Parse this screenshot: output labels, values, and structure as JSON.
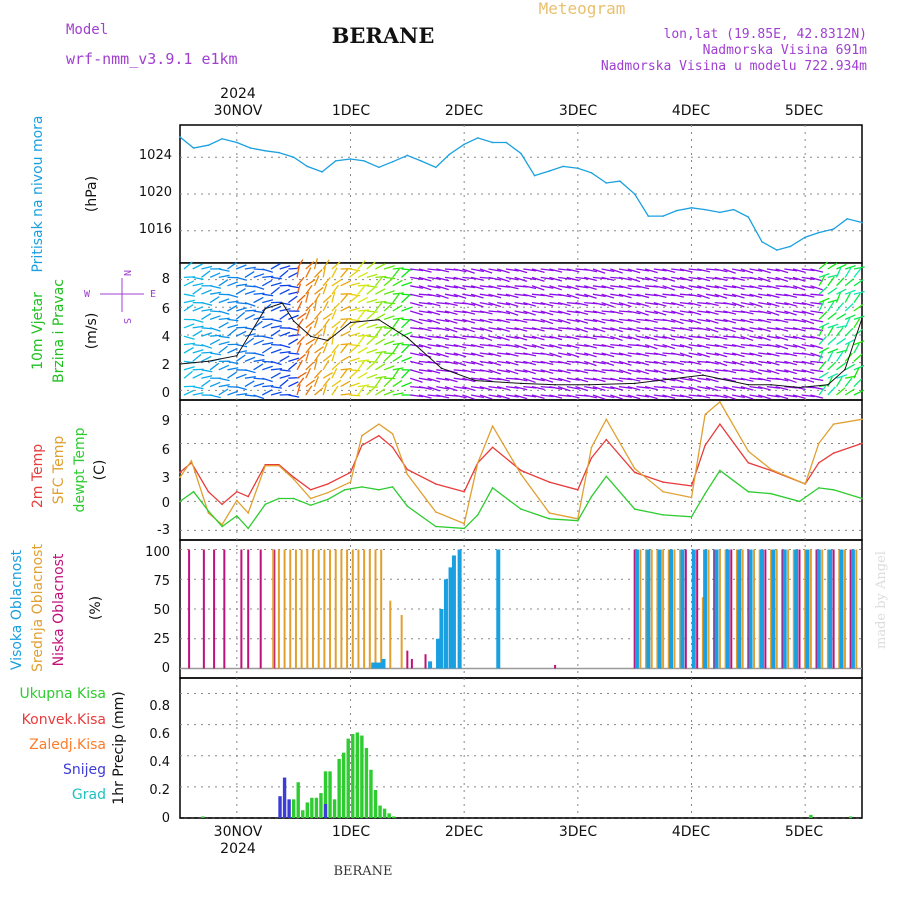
{
  "header": {
    "model_label": "Model",
    "model_name": "wrf-nmm_v3.9.1  e1km",
    "title": "BERANE",
    "meteogram_label": "Meteogram",
    "lonlat": "lon,lat (19.85E, 42.8312N)",
    "elevation": "Nadmorska Visina 691m",
    "model_elevation": "Nadmorska Visina u modelu 722.934m",
    "footer_title": "BERANE",
    "credit": "made by Angel"
  },
  "colors": {
    "pressure": "#1aa0e0",
    "t2m": "#e83c3c",
    "sfc": "#e0a030",
    "dewpt": "#2ecc30",
    "high_cloud": "#1aa0e0",
    "mid_cloud": "#e0a030",
    "low_cloud": "#c0107a",
    "total_precip": "#2ecc30",
    "conv_precip": "#e83c3c",
    "frozen_precip": "#ff7b28",
    "snow": "#3c3cd8",
    "hail": "#20c0c0",
    "wind_label": "#20c020",
    "compass": "#a040d0"
  },
  "top_axis": {
    "year": "2024",
    "labels": [
      "30NOV",
      "1DEC",
      "2DEC",
      "3DEC",
      "4DEC",
      "5DEC"
    ]
  },
  "bottom_axis": {
    "year": "2024",
    "labels": [
      "30NOV",
      "1DEC",
      "2DEC",
      "3DEC",
      "4DEC",
      "5DEC"
    ]
  },
  "panels": {
    "pressure": {
      "label": "Pritisak na nivou mora",
      "unit": "(hPa)",
      "ticks": [
        "1024",
        "1020",
        "1016"
      ]
    },
    "wind": {
      "label1": "10m Vjetar",
      "label2": "Brzina i Pravac",
      "unit": "(m/s)",
      "ticks": [
        "8",
        "6",
        "4",
        "2",
        "0"
      ],
      "compass": [
        "N",
        "W",
        "E",
        "S"
      ]
    },
    "temp": {
      "label1": "2m Temp",
      "label2": "SFC Temp",
      "label3": "dewpt Temp",
      "unit": "(C)",
      "ticks": [
        "9",
        "6",
        "3",
        "0",
        "-3"
      ]
    },
    "cloud": {
      "label1": "Visoka Oblacnost",
      "label2": "Srednja Oblacnost",
      "label3": "Niska Oblacnost",
      "unit": "(%)",
      "ticks": [
        "100",
        "75",
        "50",
        "25",
        "0"
      ]
    },
    "precip": {
      "legend": [
        "Ukupna Kisa",
        "Konvek.Kisa",
        "Zaledj.Kisa",
        "Snijeg",
        "Grad"
      ],
      "unit": "1hr Precip (mm)",
      "ticks": [
        "0.8",
        "0.6",
        "0.4",
        "0.2",
        "0"
      ]
    }
  },
  "chart_data": [
    {
      "type": "line",
      "title": "Pritisak na nivou mora",
      "ylabel": "(hPa)",
      "x_unit": "days from 29NOV 12UTC",
      "xlim": [
        0,
        6
      ],
      "ylim": [
        1012.5,
        1027.5
      ],
      "series": [
        {
          "name": "Pritisak na nivou mora",
          "x": [
            0,
            0.12,
            0.25,
            0.37,
            0.5,
            0.62,
            0.75,
            0.87,
            1.0,
            1.12,
            1.25,
            1.37,
            1.5,
            1.62,
            1.75,
            1.87,
            2.0,
            2.12,
            2.25,
            2.37,
            2.5,
            2.62,
            2.75,
            2.87,
            3.0,
            3.12,
            3.25,
            3.37,
            3.5,
            3.62,
            3.75,
            3.87,
            4.0,
            4.12,
            4.25,
            4.37,
            4.5,
            4.62,
            4.75,
            4.87,
            5.0,
            5.12,
            5.25,
            5.37,
            5.5,
            5.62,
            5.75,
            5.87,
            6.0
          ],
          "y": [
            1026.2,
            1025.0,
            1025.3,
            1026.0,
            1025.6,
            1025.0,
            1024.7,
            1024.5,
            1024.0,
            1023.0,
            1022.4,
            1023.6,
            1023.8,
            1023.6,
            1022.9,
            1023.5,
            1024.2,
            1023.6,
            1022.9,
            1024.3,
            1025.4,
            1026.1,
            1025.6,
            1025.6,
            1024.4,
            1022.0,
            1022.5,
            1023.0,
            1022.8,
            1022.3,
            1021.2,
            1021.4,
            1020.0,
            1017.6,
            1017.6,
            1018.2,
            1018.5,
            1018.3,
            1018.0,
            1018.3,
            1017.5,
            1014.8,
            1013.9,
            1014.3,
            1015.3,
            1015.8,
            1016.2,
            1017.3,
            1016.9
          ]
        }
      ]
    },
    {
      "type": "line",
      "title": "10m Vjetar Brzina i Pravac",
      "ylabel": "(m/s)",
      "x_unit": "days from 29NOV 12UTC",
      "xlim": [
        0,
        6
      ],
      "ylim": [
        -0.7,
        9.2
      ],
      "series": [
        {
          "name": "wind speed",
          "x": [
            0,
            0.25,
            0.5,
            0.75,
            0.9,
            1.0,
            1.15,
            1.3,
            1.5,
            1.75,
            2.0,
            2.3,
            2.6,
            3.0,
            3.3,
            3.6,
            4.0,
            4.3,
            4.6,
            5.0,
            5.2,
            5.45,
            5.7,
            5.85,
            6.0
          ],
          "y": [
            1.9,
            2.1,
            2.5,
            5.9,
            6.3,
            5.0,
            3.9,
            3.6,
            4.9,
            5.1,
            3.8,
            1.6,
            0.7,
            0.5,
            0.4,
            0.4,
            0.5,
            0.8,
            1.1,
            0.4,
            0.4,
            0.2,
            0.4,
            1.5,
            5.2
          ]
        }
      ]
    },
    {
      "type": "line",
      "title": "2m Temp / SFC Temp / dewpt Temp",
      "ylabel": "(C)",
      "x_unit": "days from 29NOV 12UTC",
      "xlim": [
        0,
        6
      ],
      "ylim": [
        -4,
        10.5
      ],
      "series": [
        {
          "name": "2m Temp",
          "x": [
            0,
            0.1,
            0.25,
            0.37,
            0.5,
            0.6,
            0.75,
            0.87,
            1.0,
            1.15,
            1.3,
            1.5,
            1.6,
            1.75,
            1.87,
            2.0,
            2.25,
            2.5,
            2.62,
            2.75,
            3.0,
            3.25,
            3.5,
            3.62,
            3.75,
            4.0,
            4.25,
            4.5,
            4.62,
            4.75,
            5.0,
            5.2,
            5.5,
            5.62,
            5.75,
            6.0
          ],
          "y": [
            3.0,
            4.0,
            1.0,
            -0.3,
            1.0,
            0.5,
            3.8,
            3.8,
            2.5,
            1.2,
            1.8,
            3.0,
            5.8,
            6.8,
            5.6,
            3.3,
            1.8,
            1.0,
            4.0,
            5.6,
            3.2,
            2.0,
            1.2,
            4.5,
            6.4,
            3.0,
            2.0,
            1.6,
            5.8,
            8.0,
            4.0,
            3.2,
            1.8,
            4.0,
            5.0,
            6.0
          ]
        },
        {
          "name": "SFC Temp",
          "x": [
            0,
            0.1,
            0.25,
            0.37,
            0.5,
            0.6,
            0.75,
            0.87,
            1.0,
            1.15,
            1.3,
            1.5,
            1.6,
            1.75,
            1.87,
            2.0,
            2.25,
            2.5,
            2.62,
            2.75,
            3.0,
            3.25,
            3.5,
            3.62,
            3.75,
            4.0,
            4.25,
            4.5,
            4.62,
            4.75,
            5.0,
            5.2,
            5.5,
            5.62,
            5.75,
            6.0
          ],
          "y": [
            2.5,
            4.2,
            -1.2,
            -2.4,
            0.1,
            -1.2,
            3.7,
            3.7,
            2.3,
            0.3,
            0.9,
            2.0,
            6.8,
            8.0,
            7.0,
            2.8,
            -1.1,
            -2.3,
            4.0,
            7.8,
            2.8,
            -1.2,
            -1.8,
            5.6,
            8.5,
            3.4,
            1.0,
            0.4,
            9.0,
            10.3,
            5.2,
            3.3,
            1.8,
            6.0,
            8.0,
            8.5
          ]
        },
        {
          "name": "dewpt Temp",
          "x": [
            0,
            0.12,
            0.25,
            0.37,
            0.5,
            0.6,
            0.75,
            0.87,
            1.0,
            1.15,
            1.3,
            1.45,
            1.6,
            1.75,
            1.87,
            2.0,
            2.25,
            2.5,
            2.62,
            2.75,
            3.0,
            3.25,
            3.5,
            3.62,
            3.75,
            4.0,
            4.25,
            4.5,
            4.62,
            4.75,
            5.0,
            5.2,
            5.45,
            5.62,
            5.75,
            6.0
          ],
          "y": [
            0.0,
            1.0,
            -1.0,
            -2.6,
            -1.5,
            -2.8,
            -0.3,
            0.3,
            0.3,
            -0.4,
            0.2,
            1.2,
            1.5,
            1.2,
            1.5,
            -0.5,
            -2.6,
            -2.8,
            -1.4,
            1.4,
            -0.8,
            -1.8,
            -2.0,
            0.5,
            2.6,
            -0.8,
            -1.4,
            -1.6,
            0.8,
            3.2,
            1.0,
            0.8,
            0.0,
            1.4,
            1.2,
            0.3
          ]
        }
      ]
    },
    {
      "type": "bar",
      "title": "Visoka / Srednja / Niska Oblacnost",
      "ylabel": "(%)",
      "x_unit": "days from 29NOV 12UTC",
      "xlim": [
        0,
        6
      ],
      "ylim": [
        -8,
        108
      ],
      "series": [
        {
          "name": "Niska Oblacnost",
          "x": [
            0.08,
            0.21,
            0.3,
            0.39,
            0.54,
            0.6,
            0.71,
            0.83,
            2.0,
            2.04,
            2.16,
            3.3,
            4.0,
            4.45,
            4.55,
            4.7,
            4.85,
            5.0,
            5.15,
            5.3,
            5.45,
            5.6,
            5.75,
            5.9
          ],
          "values": [
            100,
            100,
            100,
            100,
            100,
            100,
            100,
            100,
            15,
            8,
            12,
            3,
            100,
            100,
            100,
            100,
            100,
            100,
            100,
            100,
            100,
            100,
            100,
            100
          ]
        },
        {
          "name": "Srednja Oblacnost",
          "x": [
            0.82,
            0.87,
            0.92,
            0.97,
            1.02,
            1.07,
            1.12,
            1.17,
            1.22,
            1.27,
            1.32,
            1.37,
            1.42,
            1.47,
            1.52,
            1.57,
            1.62,
            1.67,
            1.72,
            1.77,
            1.85,
            1.95,
            4.05,
            4.1,
            4.15,
            4.2,
            4.25,
            4.3,
            4.35,
            4.4,
            4.6,
            4.65,
            4.75,
            4.8,
            4.9,
            4.95,
            5.05,
            5.1,
            5.2,
            5.25,
            5.35,
            5.4,
            5.5,
            5.55,
            5.65,
            5.7,
            5.8,
            5.85,
            5.95
          ],
          "values": [
            100,
            100,
            100,
            100,
            100,
            100,
            100,
            100,
            100,
            100,
            100,
            100,
            100,
            100,
            100,
            100,
            100,
            100,
            100,
            100,
            57,
            45,
            100,
            100,
            100,
            100,
            100,
            100,
            100,
            100,
            60,
            100,
            100,
            100,
            100,
            100,
            100,
            100,
            100,
            100,
            100,
            100,
            100,
            100,
            100,
            100,
            100,
            100,
            100
          ]
        },
        {
          "name": "Visoka Oblacnost",
          "x": [
            1.7,
            1.73,
            1.76,
            1.79,
            2.2,
            2.27,
            2.3,
            2.34,
            2.38,
            2.41,
            2.46,
            2.8,
            4.02,
            4.12,
            4.22,
            4.32,
            4.42,
            4.52,
            4.62,
            4.72,
            4.82,
            4.92,
            5.02,
            5.12,
            5.22,
            5.32,
            5.42,
            5.52,
            5.62,
            5.72,
            5.82,
            5.92
          ],
          "values": [
            5,
            5,
            5,
            8,
            6,
            25,
            50,
            75,
            85,
            95,
            100,
            100,
            100,
            100,
            100,
            100,
            100,
            100,
            100,
            100,
            100,
            100,
            100,
            100,
            100,
            100,
            100,
            100,
            100,
            100,
            100,
            100
          ]
        }
      ]
    },
    {
      "type": "bar",
      "title": "1hr Precip",
      "ylabel": "1hr Precip (mm)",
      "x_unit": "days from 29NOV 12UTC",
      "xlim": [
        0,
        6
      ],
      "ylim": [
        0,
        0.9
      ],
      "series": [
        {
          "name": "Ukupna Kisa",
          "x": [
            0.2,
            1.0,
            1.04,
            1.08,
            1.12,
            1.16,
            1.2,
            1.24,
            1.28,
            1.32,
            1.36,
            1.4,
            1.44,
            1.48,
            1.52,
            1.56,
            1.6,
            1.64,
            1.68,
            1.72,
            1.76,
            1.8,
            1.84,
            1.88,
            5.55,
            5.9
          ],
          "values": [
            0.01,
            0.12,
            0.23,
            0.05,
            0.1,
            0.13,
            0.13,
            0.16,
            0.3,
            0.3,
            0.12,
            0.38,
            0.42,
            0.51,
            0.54,
            0.55,
            0.53,
            0.45,
            0.31,
            0.18,
            0.08,
            0.06,
            0.03,
            0.01,
            0.02,
            0.01
          ]
        },
        {
          "name": "Snijeg",
          "x": [
            0.88,
            0.92,
            0.96,
            1.28
          ],
          "values": [
            0.14,
            0.26,
            0.12,
            0.09
          ]
        }
      ]
    }
  ]
}
